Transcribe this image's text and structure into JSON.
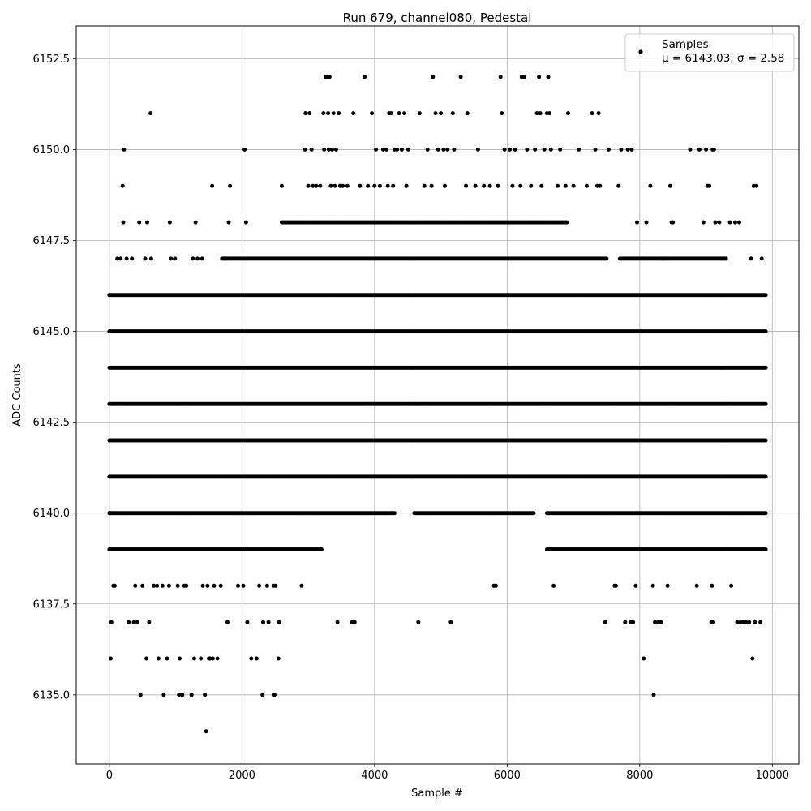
{
  "chart_data": {
    "type": "scatter",
    "title": "Run 679, channel080, Pedestal",
    "xlabel": "Sample #",
    "ylabel": "ADC Counts",
    "xlim": [
      -500,
      10400
    ],
    "ylim": [
      6133.1,
      6153.4
    ],
    "xticks": [
      0,
      2000,
      4000,
      6000,
      8000,
      10000
    ],
    "yticks": [
      6135.0,
      6137.5,
      6140.0,
      6142.5,
      6145.0,
      6147.5,
      6150.0,
      6152.5
    ],
    "xtick_labels": [
      "0",
      "2000",
      "4000",
      "6000",
      "8000",
      "10000"
    ],
    "ytick_labels": [
      "6135.0",
      "6137.5",
      "6140.0",
      "6142.5",
      "6145.0",
      "6147.5",
      "6150.0",
      "6152.5"
    ],
    "grid": true,
    "marker_color": "#000000",
    "legend": {
      "placement": "top-right",
      "entries": [
        {
          "name": "Samples",
          "stats": "μ = 6143.03, σ = 2.58"
        }
      ]
    },
    "series": [
      {
        "name": "Samples",
        "dense_levels": [
          {
            "y": 6139,
            "x_ranges": [
              [
                0,
                3200
              ],
              [
                6600,
                9900
              ]
            ]
          },
          {
            "y": 6140,
            "x_ranges": [
              [
                0,
                4300
              ],
              [
                4600,
                6400
              ],
              [
                6600,
                9900
              ]
            ]
          },
          {
            "y": 6141,
            "x_ranges": [
              [
                0,
                9900
              ]
            ]
          },
          {
            "y": 6142,
            "x_ranges": [
              [
                0,
                9900
              ]
            ]
          },
          {
            "y": 6143,
            "x_ranges": [
              [
                0,
                9900
              ]
            ]
          },
          {
            "y": 6144,
            "x_ranges": [
              [
                0,
                9900
              ]
            ]
          },
          {
            "y": 6145,
            "x_ranges": [
              [
                0,
                9900
              ]
            ]
          },
          {
            "y": 6146,
            "x_ranges": [
              [
                0,
                9900
              ]
            ]
          },
          {
            "y": 6147,
            "x_ranges": [
              [
                1700,
                7500
              ],
              [
                7700,
                9300
              ]
            ]
          },
          {
            "y": 6148,
            "x_ranges": [
              [
                2600,
                6900
              ]
            ]
          }
        ],
        "points": [
          [
            0,
            6146
          ],
          [
            10,
            6140
          ],
          [
            20,
            6136
          ],
          [
            30,
            6137
          ],
          [
            60,
            6138
          ],
          [
            80,
            6138
          ],
          [
            120,
            6147
          ],
          [
            170,
            6147
          ],
          [
            200,
            6149
          ],
          [
            210,
            6148
          ],
          [
            220,
            6150
          ],
          [
            260,
            6147
          ],
          [
            290,
            6137
          ],
          [
            340,
            6147
          ],
          [
            370,
            6137
          ],
          [
            390,
            6138
          ],
          [
            420,
            6137
          ],
          [
            450,
            6148
          ],
          [
            470,
            6135
          ],
          [
            500,
            6138
          ],
          [
            540,
            6147
          ],
          [
            560,
            6136
          ],
          [
            570,
            6148
          ],
          [
            600,
            6137
          ],
          [
            620,
            6151
          ],
          [
            630,
            6147
          ],
          [
            670,
            6138
          ],
          [
            720,
            6138
          ],
          [
            740,
            6136
          ],
          [
            800,
            6138
          ],
          [
            820,
            6135
          ],
          [
            870,
            6136
          ],
          [
            900,
            6138
          ],
          [
            910,
            6148
          ],
          [
            930,
            6147
          ],
          [
            990,
            6147
          ],
          [
            1030,
            6138
          ],
          [
            1050,
            6135
          ],
          [
            1060,
            6136
          ],
          [
            1100,
            6135
          ],
          [
            1130,
            6138
          ],
          [
            1160,
            6138
          ],
          [
            1240,
            6135
          ],
          [
            1260,
            6147
          ],
          [
            1280,
            6136
          ],
          [
            1300,
            6148
          ],
          [
            1330,
            6147
          ],
          [
            1380,
            6136
          ],
          [
            1400,
            6147
          ],
          [
            1410,
            6138
          ],
          [
            1440,
            6135
          ],
          [
            1460,
            6134
          ],
          [
            1480,
            6138
          ],
          [
            1500,
            6136
          ],
          [
            1520,
            6136
          ],
          [
            1550,
            6149
          ],
          [
            1560,
            6136
          ],
          [
            1580,
            6138
          ],
          [
            1630,
            6136
          ],
          [
            1680,
            6138
          ],
          [
            1750,
            6147
          ],
          [
            1780,
            6137
          ],
          [
            1800,
            6148
          ],
          [
            1820,
            6149
          ],
          [
            1940,
            6138
          ],
          [
            2020,
            6138
          ],
          [
            2040,
            6150
          ],
          [
            2060,
            6148
          ],
          [
            2080,
            6137
          ],
          [
            2140,
            6136
          ],
          [
            2220,
            6136
          ],
          [
            2260,
            6138
          ],
          [
            2310,
            6135
          ],
          [
            2320,
            6137
          ],
          [
            2380,
            6138
          ],
          [
            2400,
            6137
          ],
          [
            2480,
            6138
          ],
          [
            2490,
            6135
          ],
          [
            2510,
            6138
          ],
          [
            2550,
            6136
          ],
          [
            2560,
            6137
          ],
          [
            2600,
            6149
          ],
          [
            2900,
            6138
          ],
          [
            2950,
            6150
          ],
          [
            2960,
            6151
          ],
          [
            3000,
            6149
          ],
          [
            3020,
            6151
          ],
          [
            3050,
            6150
          ],
          [
            3070,
            6149
          ],
          [
            3120,
            6149
          ],
          [
            3180,
            6149
          ],
          [
            3230,
            6151
          ],
          [
            3240,
            6150
          ],
          [
            3260,
            6152
          ],
          [
            3280,
            6152
          ],
          [
            3300,
            6151
          ],
          [
            3310,
            6150
          ],
          [
            3320,
            6152
          ],
          [
            3340,
            6149
          ],
          [
            3360,
            6150
          ],
          [
            3380,
            6151
          ],
          [
            3400,
            6149
          ],
          [
            3420,
            6150
          ],
          [
            3440,
            6137
          ],
          [
            3460,
            6151
          ],
          [
            3480,
            6149
          ],
          [
            3520,
            6149
          ],
          [
            3590,
            6149
          ],
          [
            3660,
            6137
          ],
          [
            3680,
            6151
          ],
          [
            3700,
            6137
          ],
          [
            3780,
            6149
          ],
          [
            3850,
            6152
          ],
          [
            3900,
            6149
          ],
          [
            3960,
            6151
          ],
          [
            4000,
            6149
          ],
          [
            4020,
            6150
          ],
          [
            4080,
            6149
          ],
          [
            4130,
            6150
          ],
          [
            4180,
            6150
          ],
          [
            4200,
            6149
          ],
          [
            4220,
            6151
          ],
          [
            4250,
            6151
          ],
          [
            4280,
            6149
          ],
          [
            4300,
            6150
          ],
          [
            4340,
            6150
          ],
          [
            4370,
            6151
          ],
          [
            4410,
            6150
          ],
          [
            4450,
            6151
          ],
          [
            4480,
            6149
          ],
          [
            4510,
            6150
          ],
          [
            4660,
            6137
          ],
          [
            4680,
            6151
          ],
          [
            4750,
            6149
          ],
          [
            4800,
            6150
          ],
          [
            4860,
            6149
          ],
          [
            4880,
            6152
          ],
          [
            4920,
            6151
          ],
          [
            4960,
            6150
          ],
          [
            5000,
            6151
          ],
          [
            5040,
            6150
          ],
          [
            5060,
            6149
          ],
          [
            5100,
            6150
          ],
          [
            5150,
            6137
          ],
          [
            5180,
            6151
          ],
          [
            5200,
            6150
          ],
          [
            5300,
            6152
          ],
          [
            5380,
            6149
          ],
          [
            5400,
            6151
          ],
          [
            5520,
            6149
          ],
          [
            5560,
            6150
          ],
          [
            5650,
            6149
          ],
          [
            5740,
            6149
          ],
          [
            5800,
            6138
          ],
          [
            5830,
            6138
          ],
          [
            5860,
            6149
          ],
          [
            5900,
            6152
          ],
          [
            5920,
            6151
          ],
          [
            5960,
            6150
          ],
          [
            6040,
            6150
          ],
          [
            6080,
            6149
          ],
          [
            6120,
            6150
          ],
          [
            6200,
            6149
          ],
          [
            6220,
            6152
          ],
          [
            6240,
            6152
          ],
          [
            6260,
            6152
          ],
          [
            6300,
            6150
          ],
          [
            6360,
            6149
          ],
          [
            6420,
            6150
          ],
          [
            6450,
            6151
          ],
          [
            6480,
            6152
          ],
          [
            6500,
            6151
          ],
          [
            6520,
            6149
          ],
          [
            6560,
            6150
          ],
          [
            6600,
            6151
          ],
          [
            6620,
            6152
          ],
          [
            6640,
            6151
          ],
          [
            6660,
            6150
          ],
          [
            6700,
            6138
          ],
          [
            6760,
            6149
          ],
          [
            6800,
            6150
          ],
          [
            6880,
            6149
          ],
          [
            6920,
            6151
          ],
          [
            7000,
            6149
          ],
          [
            7080,
            6150
          ],
          [
            7200,
            6149
          ],
          [
            7280,
            6151
          ],
          [
            7330,
            6150
          ],
          [
            7360,
            6149
          ],
          [
            7380,
            6151
          ],
          [
            7400,
            6149
          ],
          [
            7480,
            6137
          ],
          [
            7530,
            6150
          ],
          [
            7620,
            6138
          ],
          [
            7640,
            6138
          ],
          [
            7680,
            6149
          ],
          [
            7720,
            6150
          ],
          [
            7780,
            6137
          ],
          [
            7820,
            6150
          ],
          [
            7860,
            6137
          ],
          [
            7880,
            6150
          ],
          [
            7900,
            6137
          ],
          [
            7940,
            6138
          ],
          [
            7960,
            6148
          ],
          [
            8060,
            6136
          ],
          [
            8100,
            6148
          ],
          [
            8160,
            6149
          ],
          [
            8200,
            6138
          ],
          [
            8210,
            6135
          ],
          [
            8230,
            6137
          ],
          [
            8280,
            6137
          ],
          [
            8320,
            6137
          ],
          [
            8360,
            6147
          ],
          [
            8420,
            6138
          ],
          [
            8460,
            6149
          ],
          [
            8480,
            6148
          ],
          [
            8500,
            6148
          ],
          [
            8760,
            6150
          ],
          [
            8860,
            6138
          ],
          [
            8900,
            6150
          ],
          [
            8960,
            6148
          ],
          [
            9000,
            6150
          ],
          [
            9020,
            6149
          ],
          [
            9050,
            6149
          ],
          [
            9080,
            6137
          ],
          [
            9090,
            6138
          ],
          [
            9100,
            6150
          ],
          [
            9110,
            6137
          ],
          [
            9120,
            6150
          ],
          [
            9140,
            6148
          ],
          [
            9200,
            6148
          ],
          [
            9300,
            6147
          ],
          [
            9360,
            6148
          ],
          [
            9380,
            6138
          ],
          [
            9440,
            6148
          ],
          [
            9470,
            6137
          ],
          [
            9500,
            6148
          ],
          [
            9520,
            6137
          ],
          [
            9560,
            6137
          ],
          [
            9600,
            6137
          ],
          [
            9650,
            6137
          ],
          [
            9680,
            6147
          ],
          [
            9700,
            6136
          ],
          [
            9720,
            6149
          ],
          [
            9740,
            6137
          ],
          [
            9760,
            6149
          ],
          [
            9820,
            6137
          ],
          [
            9840,
            6147
          ]
        ]
      }
    ]
  }
}
